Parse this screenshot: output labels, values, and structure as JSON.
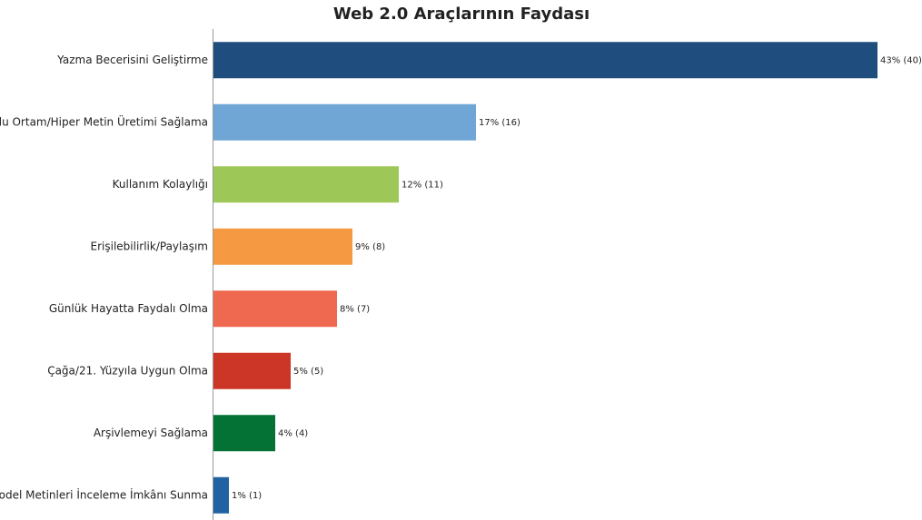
{
  "chart_data": {
    "type": "bar",
    "orientation": "horizontal",
    "title": "Web 2.0 Araçlarının Faydası",
    "categories": [
      "Yazma Becerisini Geliştirme",
      "Çoklu Ortam/Hiper Metin Üretimi Sağlama",
      "Kullanım Kolaylığı",
      "Erişilebilirlik/Paylaşım",
      "Günlük Hayatta Faydalı Olma",
      "Çağa/21. Yüzyıla Uygun Olma",
      "Arşivlemeyi Sağlama",
      "Model Metinleri İnceleme İmkânı Sunma"
    ],
    "values": [
      43,
      17,
      12,
      9,
      8,
      5,
      4,
      1
    ],
    "value_labels": [
      "43% (40)",
      "17% (16)",
      "12% (11)",
      "9% (8)",
      "8% (7)",
      "5% (5)",
      "4% (4)",
      "1% (1)"
    ],
    "colors": [
      "#1f4e7e",
      "#6fa6d6",
      "#9dc857",
      "#f59a42",
      "#ef6951",
      "#cc3627",
      "#037234",
      "#2163a2"
    ]
  }
}
